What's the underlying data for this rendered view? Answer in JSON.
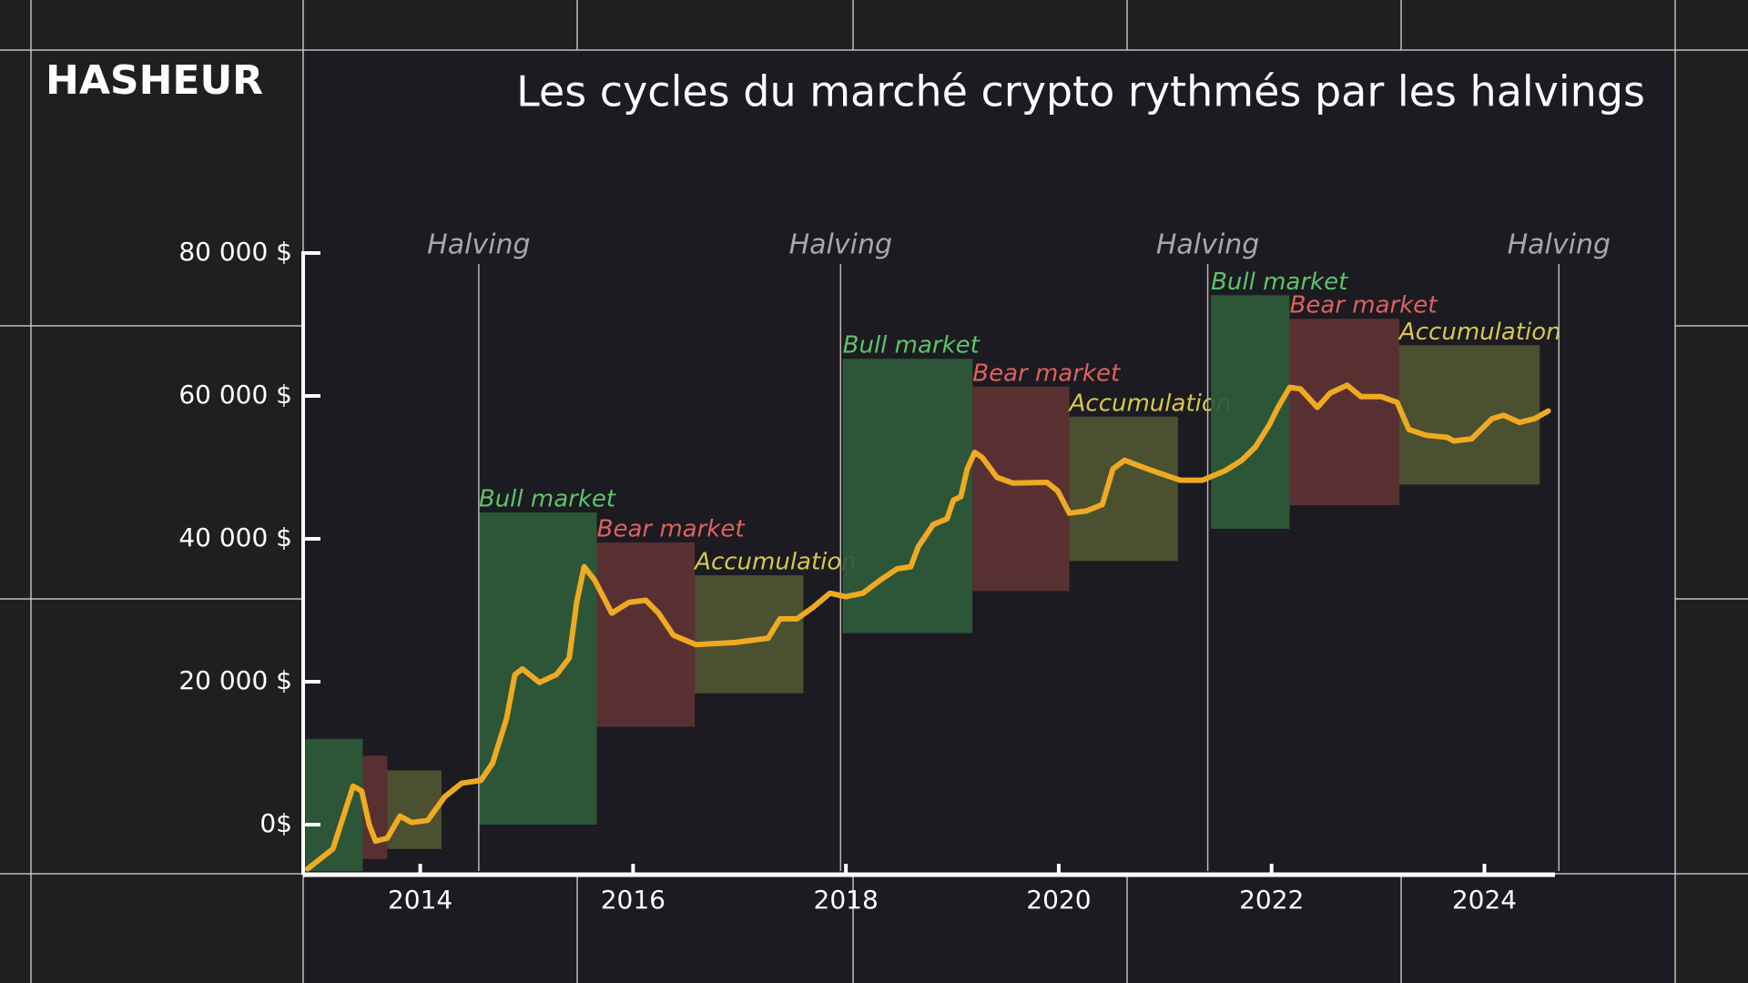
{
  "brand": "HASHEUR",
  "chart_data": {
    "type": "line",
    "title": "Les cycles du marché crypto rythmés par les halvings",
    "xlim": [
      2012.9,
      2024.8
    ],
    "xticks": [
      2014,
      2016,
      2018,
      2020,
      2022,
      2024
    ],
    "ylim": [
      -7000,
      80000
    ],
    "yticks": [
      {
        "value": 0,
        "label": "0$"
      },
      {
        "value": 20000,
        "label": "20 000 $"
      },
      {
        "value": 40000,
        "label": "40 000 $"
      },
      {
        "value": 60000,
        "label": "60 000 $"
      },
      {
        "value": 80000,
        "label": "80 000 $"
      }
    ],
    "x": [
      2012.94,
      2013.18,
      2013.32,
      2013.37,
      2013.45,
      2013.52,
      2013.58,
      2013.69,
      2013.81,
      2013.92,
      2014.07,
      2014.23,
      2014.39,
      2014.57,
      2014.68,
      2014.81,
      2014.89,
      2014.96,
      2015.12,
      2015.28,
      2015.4,
      2015.47,
      2015.54,
      2015.64,
      2015.8,
      2015.96,
      2016.12,
      2016.24,
      2016.38,
      2016.59,
      2016.96,
      2017.27,
      2017.38,
      2017.54,
      2017.69,
      2017.85,
      2018.0,
      2018.16,
      2018.32,
      2018.48,
      2018.61,
      2018.68,
      2018.82,
      2018.95,
      2019.01,
      2019.08,
      2019.14,
      2019.21,
      2019.28,
      2019.42,
      2019.57,
      2019.89,
      2019.99,
      2020.1,
      2020.26,
      2020.41,
      2020.51,
      2020.62,
      2020.83,
      2021.14,
      2021.35,
      2021.56,
      2021.72,
      2021.85,
      2021.98,
      2022.06,
      2022.17,
      2022.27,
      2022.43,
      2022.55,
      2022.71,
      2022.84,
      2023.03,
      2023.18,
      2023.29,
      2023.45,
      2023.65,
      2023.71,
      2023.88,
      2024.07,
      2024.18,
      2024.33,
      2024.47,
      2024.6
    ],
    "series": [
      {
        "color": "#eeaa22",
        "values": [
          -6200,
          -3400,
          3100,
          5400,
          4700,
          0,
          -2300,
          -1900,
          1200,
          300,
          600,
          3900,
          5800,
          6200,
          8600,
          14800,
          21000,
          21800,
          19900,
          21000,
          23300,
          31100,
          36100,
          34200,
          29600,
          31100,
          31400,
          29600,
          26500,
          25200,
          25500,
          26100,
          28800,
          28800,
          30400,
          32400,
          31900,
          32400,
          34200,
          35800,
          36100,
          38900,
          42000,
          42800,
          45400,
          45900,
          49800,
          52100,
          51400,
          48600,
          47800,
          47900,
          46700,
          43600,
          43900,
          44800,
          49800,
          51000,
          49800,
          48200,
          48200,
          49500,
          51000,
          52900,
          56000,
          58400,
          61200,
          61000,
          58400,
          60400,
          61500,
          59900,
          59900,
          59100,
          55300,
          54500,
          54200,
          53700,
          54000,
          56800,
          57300,
          56300,
          56800,
          57900
        ]
      }
    ],
    "halvings": [
      {
        "x": 2014.55,
        "label": "Halving"
      },
      {
        "x": 2017.95,
        "label": "Halving"
      },
      {
        "x": 2021.4,
        "label": "Halving"
      },
      {
        "x": 2024.7,
        "label": "Halving"
      }
    ],
    "phases": [
      {
        "color": "#2f5a3a",
        "x": [
          2012.92,
          2013.46
        ],
        "y": [
          -6500,
          12000
        ]
      },
      {
        "color": "#5e3234",
        "x": [
          2013.46,
          2013.69
        ],
        "y": [
          -4800,
          9650
        ]
      },
      {
        "color": "#4f5533",
        "x": [
          2013.69,
          2014.2
        ],
        "y": [
          -3400,
          7600
        ]
      },
      {
        "label": "Bull market",
        "label_color": "#5dc36a",
        "color": "#2f5a3a",
        "x": [
          2014.55,
          2015.66
        ],
        "y": [
          0,
          43700
        ]
      },
      {
        "label": "Bear market",
        "label_color": "#e06060",
        "color": "#5e3234",
        "x": [
          2015.66,
          2016.58
        ],
        "y": [
          13700,
          39500
        ]
      },
      {
        "label": "Accumulation",
        "label_color": "#d6c84a",
        "color": "#4f5533",
        "x": [
          2016.58,
          2017.6
        ],
        "y": [
          18400,
          34900
        ]
      },
      {
        "label": "Bull market",
        "label_color": "#5dc36a",
        "color": "#2f5a3a",
        "x": [
          2017.97,
          2019.19
        ],
        "y": [
          26800,
          65200
        ]
      },
      {
        "label": "Bear market",
        "label_color": "#e06060",
        "color": "#5e3234",
        "x": [
          2019.19,
          2020.1
        ],
        "y": [
          32700,
          61300
        ]
      },
      {
        "label": "Accumulation",
        "label_color": "#d6c84a",
        "color": "#4f5533",
        "x": [
          2020.1,
          2021.12
        ],
        "y": [
          36900,
          57100
        ]
      },
      {
        "label": "Bull market",
        "label_color": "#5dc36a",
        "color": "#2f5a3a",
        "x": [
          2021.43,
          2022.17
        ],
        "y": [
          41400,
          74100
        ]
      },
      {
        "label": "Bear market",
        "label_color": "#e06060",
        "color": "#5e3234",
        "x": [
          2022.17,
          2023.2
        ],
        "y": [
          44700,
          70800
        ]
      },
      {
        "label": "Accumulation",
        "label_color": "#d6c84a",
        "color": "#4f5533",
        "x": [
          2023.2,
          2024.52
        ],
        "y": [
          47600,
          67100
        ]
      }
    ]
  }
}
